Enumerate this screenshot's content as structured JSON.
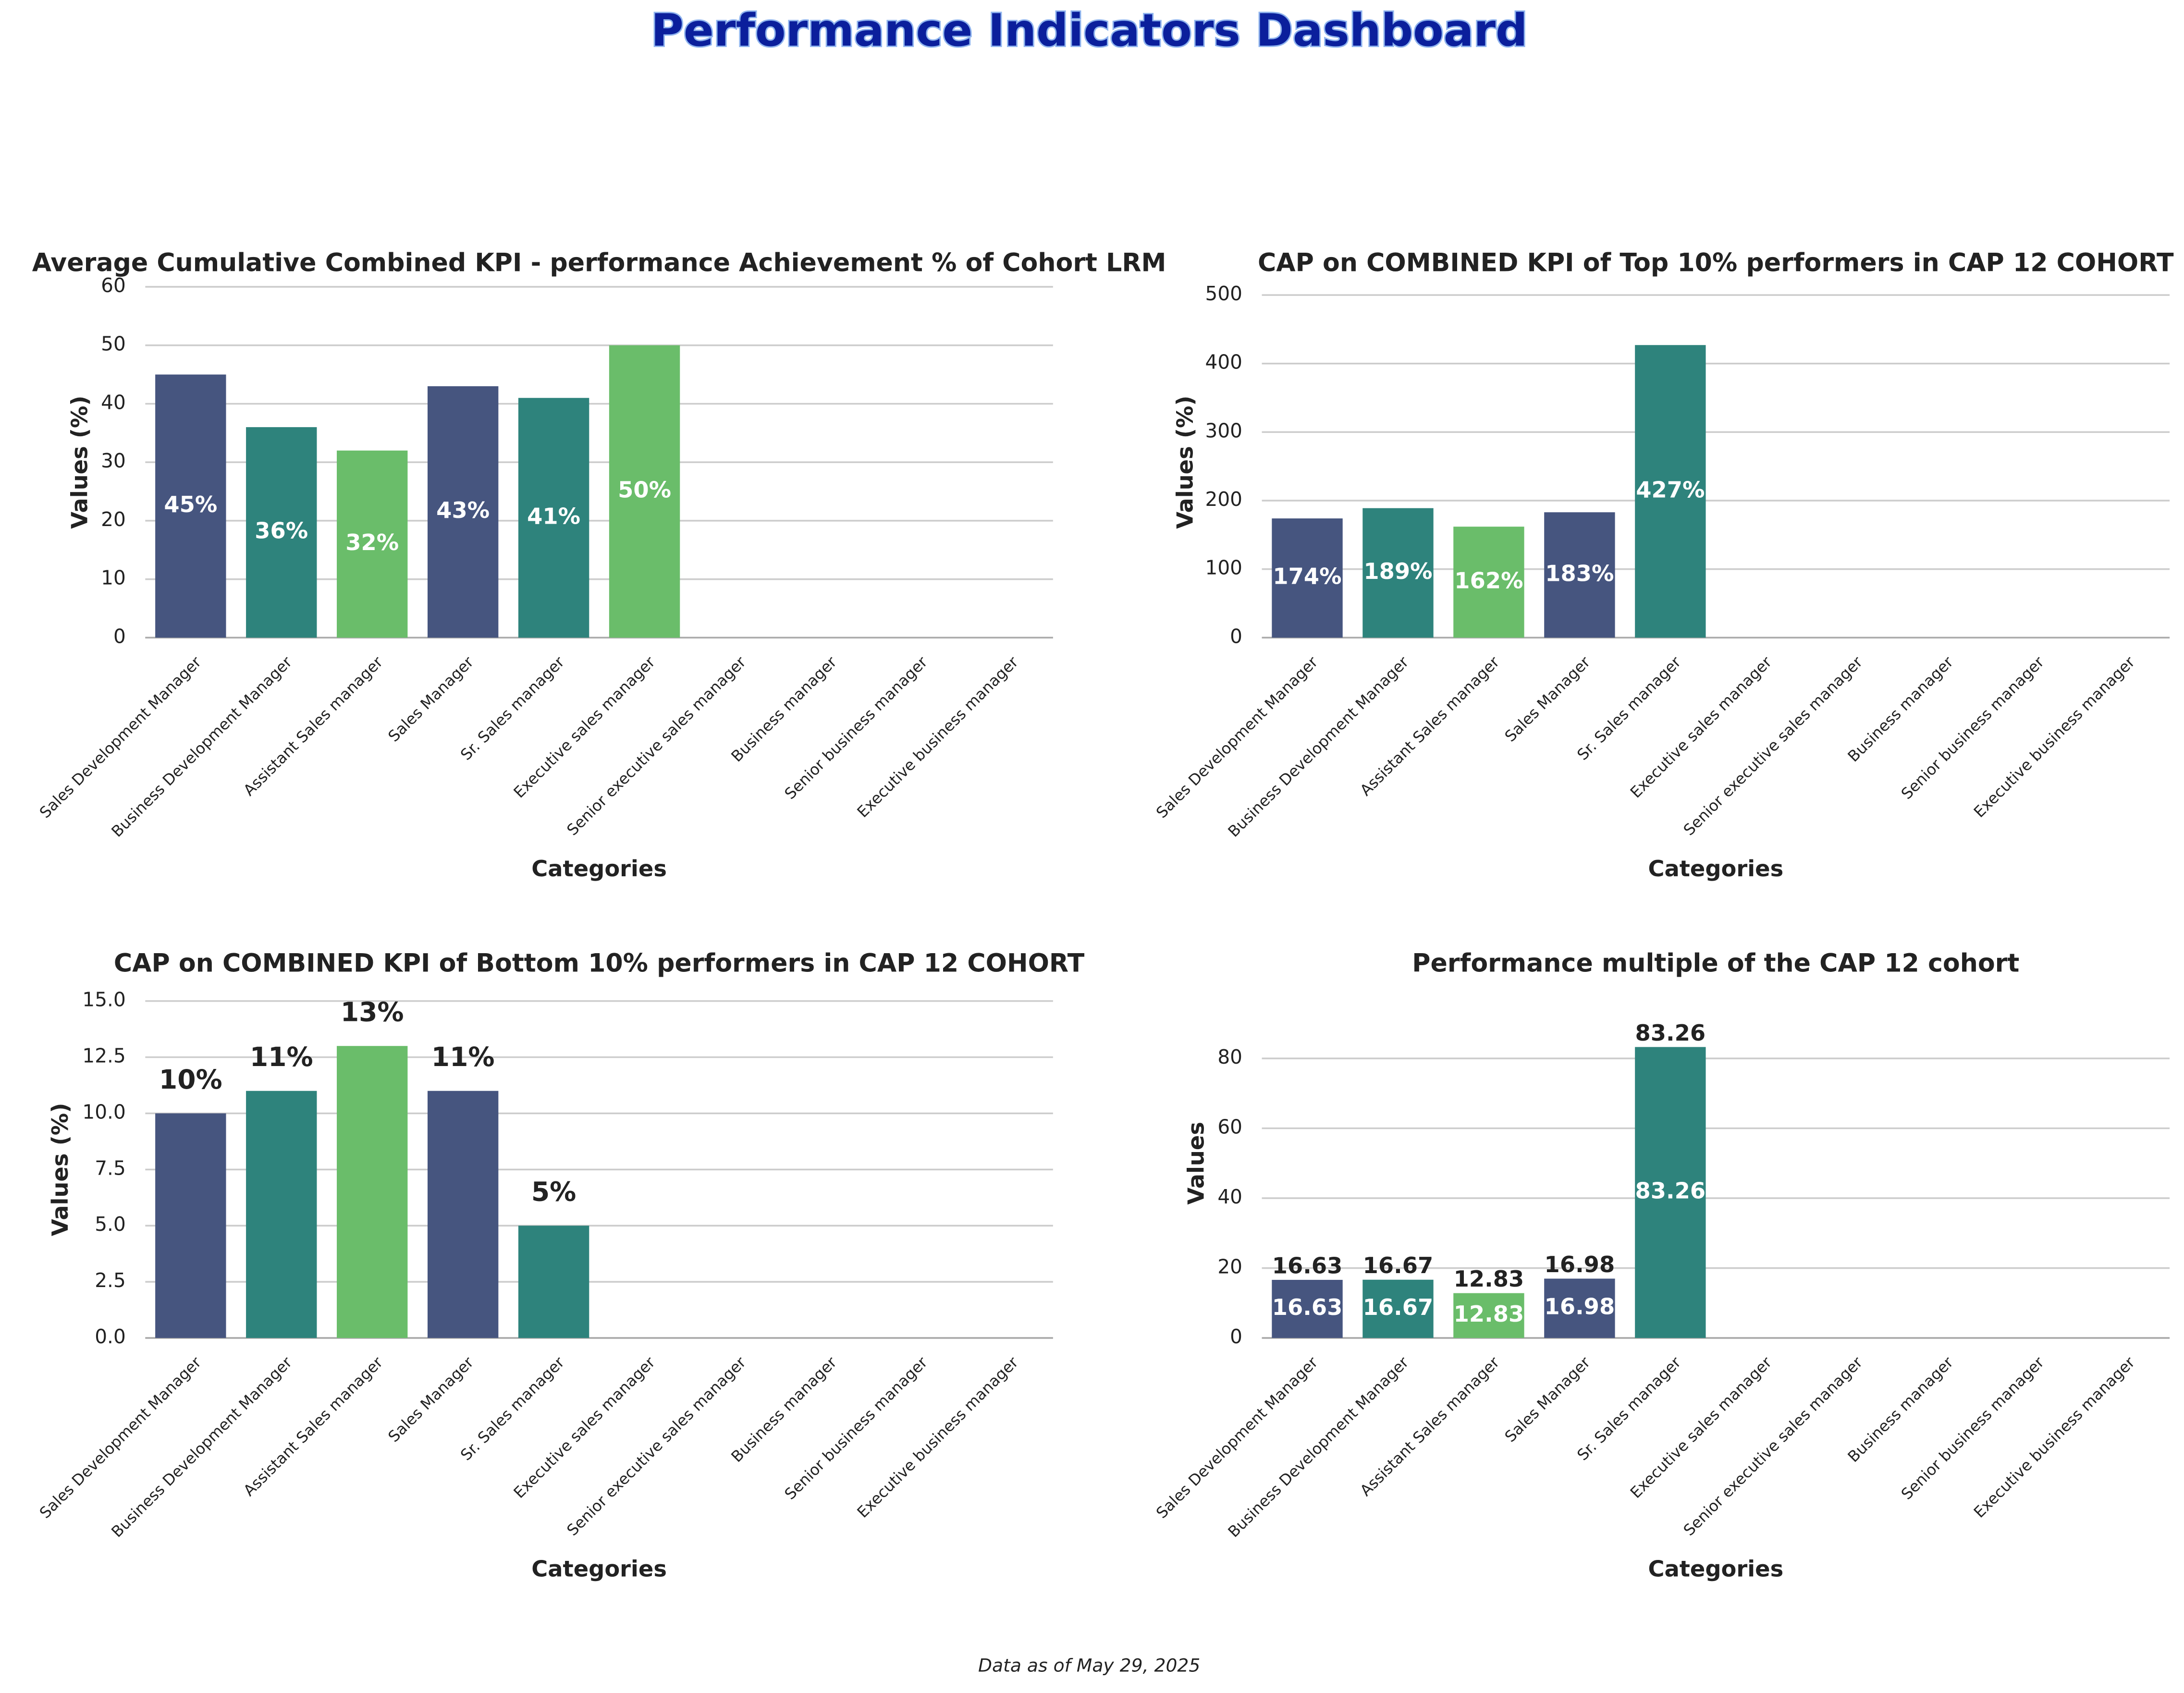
{
  "title": "Performance Indicators Dashboard",
  "footnote": "Data as of May 29, 2025",
  "chart_data": [
    {
      "type": "bar",
      "title": "Average Cumulative Combined KPI - performance Achievement % of Cohort LRM",
      "x_label": "Categories",
      "y_label": "Values (%)",
      "categories": [
        "Sales Development Manager",
        "Business Development Manager",
        "Assistant Sales manager",
        "Sales Manager",
        "Sr. Sales manager",
        "Executive sales manager",
        "Senior executive sales manager",
        "Business manager",
        "Senior business manager",
        "Executive business manager"
      ],
      "values": [
        45,
        36,
        32,
        43,
        41,
        50,
        null,
        null,
        null,
        null
      ],
      "value_labels": [
        "45%",
        "36%",
        "32%",
        "43%",
        "41%",
        "50%",
        null,
        null,
        null,
        null
      ],
      "label_positions": [
        "middle"
      ],
      "palette": [
        "#46557f",
        "#2e837c",
        "#6abd6a"
      ],
      "ylim": [
        0,
        60
      ],
      "yticks": [
        0,
        10,
        20,
        30,
        40,
        50,
        60
      ],
      "grid": true
    },
    {
      "type": "bar",
      "title": "CAP on COMBINED KPI of Top 10% performers in CAP 12 COHORT",
      "x_label": "Categories",
      "y_label": "Values (%)",
      "categories": [
        "Sales Development Manager",
        "Business Development Manager",
        "Assistant Sales manager",
        "Sales Manager",
        "Sr. Sales manager",
        "Executive sales manager",
        "Senior executive sales manager",
        "Business manager",
        "Senior business manager",
        "Executive business manager"
      ],
      "values": [
        174,
        189,
        162,
        183,
        427,
        null,
        null,
        null,
        null,
        null
      ],
      "value_labels": [
        "174%",
        "189%",
        "162%",
        "183%",
        "427%",
        null,
        null,
        null,
        null,
        null
      ],
      "label_positions": [
        "middle"
      ],
      "palette": [
        "#46557f",
        "#2e837c",
        "#6abd6a"
      ],
      "ylim": [
        0,
        512
      ],
      "yticks": [
        0,
        100,
        200,
        300,
        400,
        500
      ],
      "grid": true
    },
    {
      "type": "bar",
      "title": "CAP on COMBINED KPI of Bottom 10% performers in CAP 12 COHORT",
      "x_label": "Categories",
      "y_label": "Values (%)",
      "categories": [
        "Sales Development Manager",
        "Business Development Manager",
        "Assistant Sales manager",
        "Sales Manager",
        "Sr. Sales manager",
        "Executive sales manager",
        "Senior executive sales manager",
        "Business manager",
        "Senior business manager",
        "Executive business manager"
      ],
      "values": [
        10,
        11,
        13,
        11,
        5,
        null,
        null,
        null,
        null,
        null
      ],
      "value_labels": [
        "10%",
        "11%",
        "13%",
        "11%",
        "5%",
        null,
        null,
        null,
        null,
        null
      ],
      "label_positions": [
        "above"
      ],
      "palette": [
        "#46557f",
        "#2e837c",
        "#6abd6a"
      ],
      "ylim": [
        0,
        15
      ],
      "yticks": [
        {
          "value": 0,
          "label": "0.0"
        },
        2.5,
        {
          "value": 5,
          "label": "5.0"
        },
        7.5,
        {
          "value": 10,
          "label": "10.0"
        },
        12.5,
        {
          "value": 15,
          "label": "15.0"
        }
      ],
      "grid": true
    },
    {
      "type": "bar",
      "title": "Performance multiple of the CAP 12 cohort",
      "x_label": "Categories",
      "y_label": "Values",
      "categories": [
        "Sales Development Manager",
        "Business Development Manager",
        "Assistant Sales manager",
        "Sales Manager",
        "Sr. Sales manager",
        "Executive sales manager",
        "Senior executive sales manager",
        "Business manager",
        "Senior business manager",
        "Executive business manager"
      ],
      "values": [
        16.63,
        16.67,
        12.83,
        16.98,
        83.26,
        null,
        null,
        null,
        null,
        null
      ],
      "label_positions": [
        "above",
        "middle"
      ],
      "palette": [
        "#46557f",
        "#2e837c",
        "#6abd6a"
      ],
      "ylim": [
        0,
        100
      ],
      "yticks": [
        0,
        20,
        40,
        60,
        80
      ],
      "grid": true
    }
  ]
}
